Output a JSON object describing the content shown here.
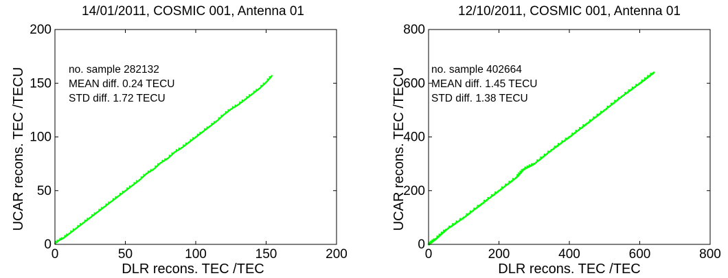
{
  "chart_data": [
    {
      "type": "scatter",
      "title": "14/01/2011, COSMIC 001, Antenna 01",
      "xlabel": "DLR recons. TEC /TEC",
      "ylabel": "UCAR recons. TEC /TECU",
      "xlim": [
        0,
        200
      ],
      "ylim": [
        0,
        200
      ],
      "xticks": [
        "0",
        "50",
        "100",
        "150",
        "200"
      ],
      "yticks": [
        "0",
        "50",
        "100",
        "150",
        "200"
      ],
      "grid": false,
      "stats": [
        "no. sample 282132",
        "MEAN diff. 0.24 TECU",
        "STD diff. 1.72 TECU"
      ],
      "point_color": "#00ff00",
      "points": [
        [
          0,
          1
        ],
        [
          3,
          4
        ],
        [
          6,
          6
        ],
        [
          10,
          10
        ],
        [
          15,
          15
        ],
        [
          20,
          20
        ],
        [
          25,
          25
        ],
        [
          30,
          30
        ],
        [
          35,
          35
        ],
        [
          40,
          40
        ],
        [
          45,
          45
        ],
        [
          50,
          50
        ],
        [
          55,
          55
        ],
        [
          60,
          60
        ],
        [
          65,
          66
        ],
        [
          70,
          70
        ],
        [
          75,
          76
        ],
        [
          80,
          80
        ],
        [
          85,
          86
        ],
        [
          90,
          90
        ],
        [
          95,
          95
        ],
        [
          100,
          100
        ],
        [
          105,
          105
        ],
        [
          110,
          110
        ],
        [
          115,
          115
        ],
        [
          120,
          121
        ],
        [
          125,
          126
        ],
        [
          130,
          130
        ],
        [
          135,
          135
        ],
        [
          140,
          140
        ],
        [
          145,
          145
        ],
        [
          150,
          151
        ],
        [
          154,
          157
        ]
      ]
    },
    {
      "type": "scatter",
      "title": "12/10/2011, COSMIC 001, Antenna 01",
      "xlabel": "DLR recons. TEC /TEC",
      "ylabel": "UCAR recons. TEC /TECU",
      "xlim": [
        0,
        800
      ],
      "ylim": [
        0,
        800
      ],
      "xticks": [
        "0",
        "200",
        "400",
        "600",
        "800"
      ],
      "yticks": [
        "0",
        "200",
        "400",
        "600",
        "800"
      ],
      "grid": false,
      "stats": [
        "no. sample 402664",
        "MEAN diff. 1.45 TECU",
        "STD diff. 1.38 TECU"
      ],
      "point_color": "#00ff00",
      "points": [
        [
          0,
          0
        ],
        [
          20,
          20
        ],
        [
          50,
          55
        ],
        [
          100,
          100
        ],
        [
          150,
          150
        ],
        [
          200,
          200
        ],
        [
          250,
          250
        ],
        [
          270,
          280
        ],
        [
          300,
          300
        ],
        [
          350,
          352
        ],
        [
          400,
          400
        ],
        [
          450,
          450
        ],
        [
          500,
          500
        ],
        [
          550,
          552
        ],
        [
          600,
          600
        ],
        [
          640,
          640
        ]
      ]
    }
  ]
}
